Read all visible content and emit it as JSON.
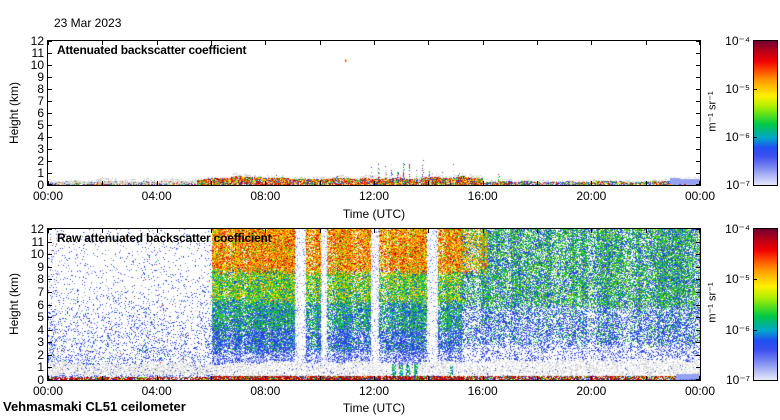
{
  "page": {
    "date_label": "23 Mar 2023",
    "footer_label": "Vehmasmaki CL51 ceilometer",
    "background": "#ffffff",
    "axis_color": "#000000"
  },
  "colors": {
    "darkred": "#9c0000",
    "red": "#e81400",
    "orangered": "#ff5000",
    "orange": "#ff9600",
    "yellow": "#ffe000",
    "yellowgreen": "#b4e600",
    "green": "#2cc82c",
    "green2": "#00b44c",
    "teal": "#00b090",
    "cyan": "#00b4d2",
    "blue": "#2846e6",
    "blue2": "#4062ea",
    "lightblue": "#7080ec",
    "periwinkle": "#96a2f0",
    "paleblue": "#c6cdf7",
    "gray": "#c9c9c9",
    "lightgray": "#e3e3e3",
    "white": "#ffffff"
  },
  "palettes": {
    "t_band_gray": {
      "gray": 0.5,
      "lightgray": 0.3,
      "blue": 0.06,
      "red": 0.05,
      "green": 0.05,
      "orange": 0.04
    },
    "t_band_floor": {
      "blue": 0.24,
      "red": 0.2,
      "green": 0.16,
      "orange": 0.1,
      "gray": 0.3
    },
    "t_band_day": {
      "red": 0.25,
      "darkred": 0.07,
      "orangered": 0.1,
      "orange": 0.12,
      "yellow": 0.1,
      "green": 0.17,
      "blue": 0.12,
      "gray": 0.07
    },
    "t_band_eve": {
      "red": 0.18,
      "green": 0.2,
      "blue": 0.28,
      "orange": 0.07,
      "yellow": 0.08,
      "gray": 0.19
    },
    "t_cap": {
      "gray": 0.55,
      "lightgray": 0.45
    },
    "t_spike": {
      "blue": 0.45,
      "gray": 0.25,
      "green": 0.17,
      "red": 0.13
    },
    "b_sparse": {
      "blue": 0.56,
      "lightblue": 0.26,
      "periwinkle": 0.12,
      "green2": 0.04,
      "red": 0.02
    },
    "b_grayband": {
      "lightgray": 0.42,
      "gray": 0.26,
      "white": 0.32
    },
    "b_whiteband": {
      "white": 0.55,
      "lightgray": 0.3,
      "gray": 0.15
    },
    "b_floor": {
      "darkred": 0.38,
      "red": 0.26,
      "orange": 0.09,
      "yellow": 0.05,
      "green": 0.1,
      "blue": 0.12
    },
    "b_floor_eve": {
      "darkred": 0.28,
      "red": 0.2,
      "orange": 0.07,
      "green": 0.13,
      "blue": 0.18,
      "yellow": 0.04,
      "gray": 0.1
    },
    "b_top_orange": {
      "orangered": 0.2,
      "orange": 0.3,
      "red": 0.12,
      "yellow": 0.24,
      "green": 0.1,
      "darkred": 0.04
    },
    "b_mid_green": {
      "green": 0.32,
      "green2": 0.12,
      "yellow": 0.16,
      "orange": 0.1,
      "yellowgreen": 0.12,
      "cyan": 0.06,
      "blue": 0.12
    },
    "b_green_blue": {
      "green": 0.4,
      "green2": 0.08,
      "cyan": 0.08,
      "blue": 0.36,
      "periwinkle": 0.08
    },
    "b_low_blue": {
      "blue": 0.6,
      "green": 0.16,
      "cyan": 0.06,
      "periwinkle": 0.18
    },
    "b_sparse_blue": {
      "blue": 0.5,
      "periwinkle": 0.35,
      "paleblue": 0.15
    },
    "b_stripe": {
      "periwinkle": 0.5,
      "paleblue": 0.35,
      "blue2": 0.15
    },
    "b_right_top": {
      "green": 0.46,
      "teal": 0.07,
      "blue": 0.33,
      "yellowgreen": 0.07,
      "periwinkle": 0.07
    },
    "b_right_mid": {
      "blue": 0.6,
      "green": 0.2,
      "periwinkle": 0.16,
      "cyan": 0.04
    },
    "b_orange_fade": {
      "orange": 0.27,
      "yellow": 0.15,
      "green": 0.33,
      "blue": 0.15,
      "orangered": 0.1
    },
    "b_cloud": {
      "green": 0.45,
      "cyan": 0.3,
      "blue": 0.25
    }
  },
  "chart_data": [
    {
      "type": "heatmap",
      "title": "Attenuated backscatter coefficient",
      "xlabel": "Time (UTC)",
      "ylabel": "Height (km)",
      "xlim_hours": [
        0,
        24
      ],
      "ylim_km": [
        0,
        12
      ],
      "x_tick_labels": [
        "00:00",
        "04:00",
        "08:00",
        "12:00",
        "16:00",
        "20:00",
        "00:00"
      ],
      "x_major_hours": [
        0,
        4,
        8,
        12,
        16,
        20,
        24
      ],
      "x_minor_hours": [
        2,
        6,
        10,
        14,
        18,
        22
      ],
      "y_tick_km": [
        0,
        1,
        2,
        3,
        4,
        5,
        6,
        7,
        8,
        9,
        10,
        11,
        12
      ],
      "y_tick_labels": [
        "0",
        "1",
        "2",
        "3",
        "4",
        "5",
        "6",
        "7",
        "8",
        "9",
        "10",
        "11",
        "12"
      ],
      "grid": false,
      "legend": "colorbar-right",
      "colorbar": {
        "unit": "m⁻¹ sr⁻¹",
        "scale": "log",
        "tick_labels": [
          "10⁻⁴",
          "10⁻⁵",
          "10⁻⁶",
          "10⁻⁷"
        ],
        "gradient": [
          [
            "#700030",
            0
          ],
          [
            "#b80018",
            7
          ],
          [
            "#f00000",
            14
          ],
          [
            "#ff5000",
            21
          ],
          [
            "#ff9600",
            27
          ],
          [
            "#ffc800",
            33
          ],
          [
            "#fff000",
            38
          ],
          [
            "#b4f000",
            45
          ],
          [
            "#50dc20",
            52
          ],
          [
            "#00c846",
            58
          ],
          [
            "#00b48c",
            63
          ],
          [
            "#00a8c8",
            67
          ],
          [
            "#2050f0",
            74
          ],
          [
            "#3c50ee",
            80
          ],
          [
            "#7482f0",
            87
          ],
          [
            "#aab2f4",
            93
          ],
          [
            "#e6e8fb",
            100
          ]
        ]
      },
      "render": "surface",
      "features": {
        "seed": 11,
        "band": {
          "early_end": 5.5,
          "grow_end": 6.5,
          "day_end": 16,
          "eve_end": 22.9,
          "early_h": 0.28,
          "day_h": 0.55,
          "eve_h": 0.3,
          "solid_h": 0.5
        },
        "spikes": [
          [
            11.9,
            1.5
          ],
          [
            12.15,
            2.0
          ],
          [
            12.4,
            1.6
          ],
          [
            12.62,
            2.2
          ],
          [
            12.85,
            1.4
          ],
          [
            13.05,
            2.5
          ],
          [
            13.3,
            1.8
          ],
          [
            13.55,
            1.3
          ],
          [
            13.78,
            2.3
          ],
          [
            14.02,
            1.6
          ],
          [
            14.5,
            1.2
          ],
          [
            14.92,
            1.9
          ],
          [
            15.1,
            1.4
          ],
          [
            16.55,
            1.0
          ],
          [
            9.9,
            0.9
          ],
          [
            10.6,
            1.0
          ],
          [
            8.35,
            0.8
          ],
          [
            7.1,
            0.7
          ]
        ],
        "dot": {
          "t": 10.93,
          "z": 10.45
        }
      }
    },
    {
      "type": "heatmap",
      "title": "Raw attenuated backscatter coefficient",
      "xlabel": "Time (UTC)",
      "ylabel": "Height (km)",
      "xlim_hours": [
        0,
        24
      ],
      "ylim_km": [
        0,
        12
      ],
      "x_tick_labels": [
        "00:00",
        "04:00",
        "08:00",
        "12:00",
        "16:00",
        "20:00",
        "00:00"
      ],
      "x_major_hours": [
        0,
        4,
        8,
        12,
        16,
        20,
        24
      ],
      "x_minor_hours": [
        2,
        6,
        10,
        14,
        18,
        22
      ],
      "y_tick_km": [
        0,
        1,
        2,
        3,
        4,
        5,
        6,
        7,
        8,
        9,
        10,
        11,
        12
      ],
      "y_tick_labels": [
        "0",
        "1",
        "2",
        "3",
        "4",
        "5",
        "6",
        "7",
        "8",
        "9",
        "10",
        "11",
        "12"
      ],
      "grid": false,
      "legend": "colorbar-right",
      "colorbar": {
        "unit": "m⁻¹ sr⁻¹",
        "scale": "log",
        "tick_labels": [
          "10⁻⁴",
          "10⁻⁵",
          "10⁻⁶",
          "10⁻⁷"
        ],
        "gradient": [
          [
            "#700030",
            0
          ],
          [
            "#b80018",
            7
          ],
          [
            "#f00000",
            14
          ],
          [
            "#ff5000",
            21
          ],
          [
            "#ff9600",
            27
          ],
          [
            "#ffc800",
            33
          ],
          [
            "#fff000",
            38
          ],
          [
            "#b4f000",
            45
          ],
          [
            "#50dc20",
            52
          ],
          [
            "#00c846",
            58
          ],
          [
            "#00b48c",
            63
          ],
          [
            "#00a8c8",
            67
          ],
          [
            "#2050f0",
            74
          ],
          [
            "#3c50ee",
            80
          ],
          [
            "#7482f0",
            87
          ],
          [
            "#aab2f4",
            93
          ],
          [
            "#e6e8fb",
            100
          ]
        ]
      },
      "render": "raw",
      "features": {
        "seed": 23,
        "dense_start": 6.05,
        "dense_end": 15.25,
        "stripes": [
          [
            9.3,
            0.38
          ],
          [
            10.15,
            0.22
          ],
          [
            12.05,
            0.3
          ],
          [
            14.15,
            0.42
          ]
        ],
        "clouds": [
          [
            12.75,
            1.3
          ],
          [
            13.0,
            1.6
          ],
          [
            13.25,
            1.2
          ],
          [
            13.55,
            1.5
          ],
          [
            14.85,
            1.15
          ]
        ],
        "solid_start": 23.1,
        "solid_h": 0.5,
        "white_band_top": 1.3
      }
    }
  ]
}
